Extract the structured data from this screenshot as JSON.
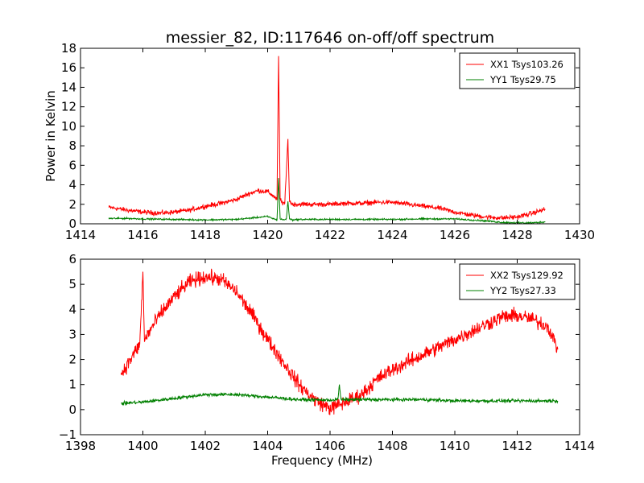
{
  "figure": {
    "title": "messier_82, ID:117646 on-off/off spectrum"
  },
  "chart_data": [
    {
      "type": "line",
      "title": "messier_82, ID:117646 on-off/off spectrum",
      "xlabel": "",
      "ylabel": "Power in Kelvin",
      "xlim": [
        1414,
        1430
      ],
      "ylim": [
        0,
        18
      ],
      "xticks": [
        "1414",
        "1416",
        "1418",
        "1420",
        "1422",
        "1424",
        "1426",
        "1428",
        "1430"
      ],
      "yticks": [
        "0",
        "2",
        "4",
        "6",
        "8",
        "10",
        "12",
        "14",
        "16",
        "18"
      ],
      "legend_position": "upper-right",
      "grid": false,
      "series": [
        {
          "name": "XX1 Tsys103.26",
          "color": "#ff0000",
          "noise": 0.15,
          "x": [
            1414.9,
            1415.5,
            1416.0,
            1416.5,
            1417.0,
            1417.5,
            1418.0,
            1418.5,
            1419.0,
            1419.4,
            1419.7,
            1420.0,
            1420.2,
            1420.3,
            1420.35,
            1420.4,
            1420.45,
            1420.55,
            1420.65,
            1420.7,
            1420.8,
            1421.0,
            1421.5,
            1422.0,
            1422.5,
            1423.0,
            1423.5,
            1424.0,
            1424.5,
            1425.0,
            1425.5,
            1426.0,
            1426.5,
            1427.0,
            1427.5,
            1428.0,
            1428.5,
            1428.9
          ],
          "y": [
            1.7,
            1.4,
            1.2,
            1.1,
            1.2,
            1.4,
            1.8,
            2.1,
            2.5,
            3.1,
            3.4,
            3.3,
            2.8,
            2.5,
            17.2,
            2.6,
            2.2,
            2.1,
            8.7,
            2.3,
            2.0,
            2.0,
            2.0,
            2.0,
            2.1,
            2.1,
            2.2,
            2.2,
            2.0,
            1.8,
            1.6,
            1.2,
            0.9,
            0.7,
            0.6,
            0.7,
            1.1,
            1.5
          ]
        },
        {
          "name": "YY1 Tsys29.75",
          "color": "#008000",
          "noise": 0.05,
          "x": [
            1414.9,
            1415.5,
            1416.0,
            1417.0,
            1418.0,
            1419.0,
            1419.5,
            1420.0,
            1420.2,
            1420.3,
            1420.35,
            1420.4,
            1420.5,
            1420.6,
            1420.65,
            1420.7,
            1420.8,
            1421.0,
            1422.0,
            1423.0,
            1424.0,
            1425.0,
            1426.0,
            1427.0,
            1427.5,
            1428.0,
            1428.5,
            1428.9
          ],
          "y": [
            0.55,
            0.55,
            0.5,
            0.45,
            0.4,
            0.45,
            0.6,
            0.75,
            0.5,
            0.4,
            4.7,
            0.5,
            0.4,
            0.5,
            2.3,
            0.5,
            0.4,
            0.45,
            0.45,
            0.45,
            0.45,
            0.5,
            0.5,
            0.3,
            0.15,
            0.1,
            0.1,
            0.2
          ]
        }
      ]
    },
    {
      "type": "line",
      "title": "",
      "xlabel": "Frequency (MHz)",
      "ylabel": "",
      "xlim": [
        1398,
        1414
      ],
      "ylim": [
        -1,
        6
      ],
      "xticks": [
        "1398",
        "1400",
        "1402",
        "1404",
        "1406",
        "1408",
        "1410",
        "1412",
        "1414"
      ],
      "yticks": [
        "−1",
        "0",
        "1",
        "2",
        "3",
        "4",
        "5",
        "6"
      ],
      "legend_position": "upper-right",
      "grid": false,
      "series": [
        {
          "name": "XX2 Tsys129.92",
          "color": "#ff0000",
          "noise": 0.18,
          "x": [
            1399.3,
            1399.6,
            1399.9,
            1400.0,
            1400.05,
            1400.1,
            1400.5,
            1401.0,
            1401.5,
            1402.0,
            1402.5,
            1403.0,
            1403.5,
            1404.0,
            1404.5,
            1405.0,
            1405.5,
            1406.0,
            1406.5,
            1407.0,
            1407.5,
            1408.0,
            1408.5,
            1409.0,
            1409.5,
            1410.0,
            1410.5,
            1411.0,
            1411.5,
            1412.0,
            1412.5,
            1413.0,
            1413.3
          ],
          "y": [
            1.4,
            2.0,
            2.6,
            5.5,
            2.7,
            2.9,
            3.7,
            4.5,
            5.1,
            5.3,
            5.2,
            4.7,
            3.8,
            2.8,
            1.9,
            1.0,
            0.4,
            0.05,
            0.3,
            0.6,
            1.2,
            1.6,
            1.9,
            2.2,
            2.5,
            2.8,
            3.1,
            3.4,
            3.7,
            3.75,
            3.6,
            3.3,
            2.4
          ]
        },
        {
          "name": "YY2 Tsys27.33",
          "color": "#008000",
          "noise": 0.04,
          "x": [
            1399.3,
            1400.0,
            1401.0,
            1402.0,
            1403.0,
            1404.0,
            1405.0,
            1406.0,
            1406.25,
            1406.3,
            1406.35,
            1407.0,
            1408.0,
            1409.0,
            1410.0,
            1411.0,
            1412.0,
            1413.3
          ],
          "y": [
            0.25,
            0.3,
            0.45,
            0.6,
            0.6,
            0.5,
            0.4,
            0.38,
            0.4,
            1.0,
            0.4,
            0.4,
            0.4,
            0.4,
            0.35,
            0.35,
            0.35,
            0.35
          ]
        }
      ]
    }
  ]
}
